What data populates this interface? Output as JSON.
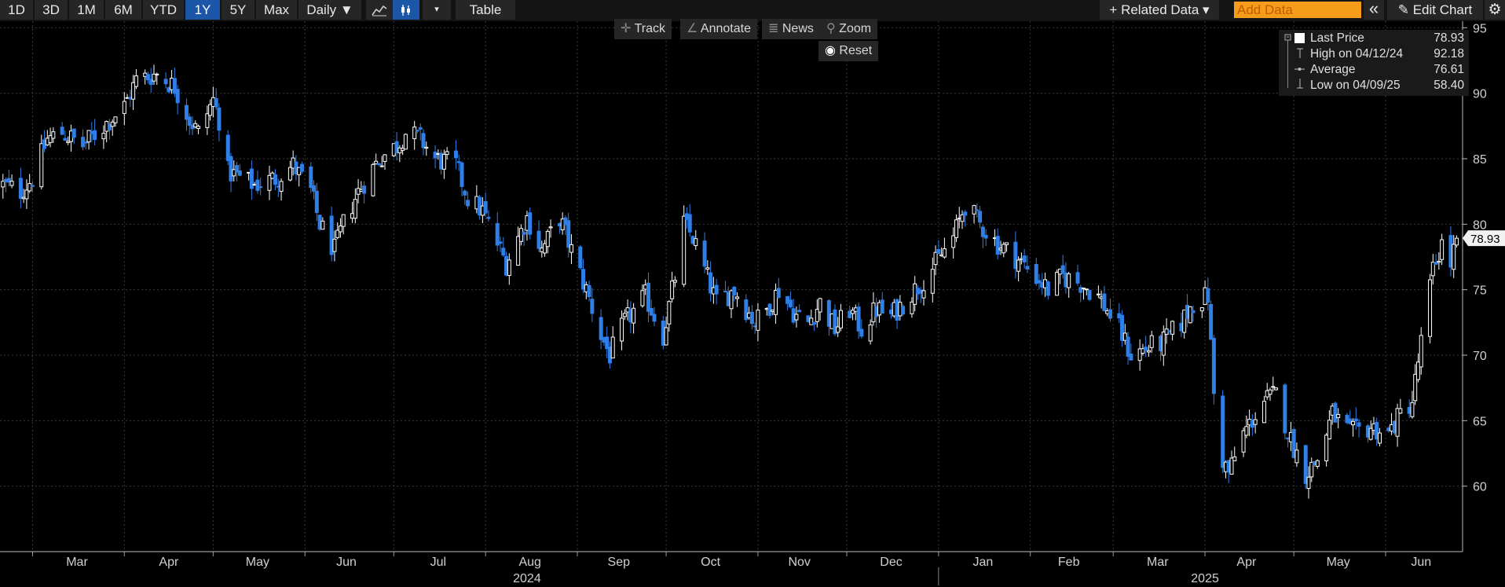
{
  "toolbar": {
    "ranges": [
      "1D",
      "3D",
      "1M",
      "6M",
      "YTD",
      "1Y",
      "5Y",
      "Max"
    ],
    "selected_range": "1Y",
    "interval": "Daily ▼",
    "chart_icons": [
      "line-chart-icon",
      "candlestick-icon",
      "dropdown-arrow-icon"
    ],
    "table_label": "Table",
    "related_data": "+ Related Data ▾",
    "add_data_placeholder": "Add Data",
    "collapse_glyph": "«",
    "edit_chart": "Edit Chart",
    "settings_icon": "gear-icon"
  },
  "chart_tools": {
    "track": "Track",
    "annotate": "Annotate",
    "news": "News",
    "zoom": "Zoom",
    "reset": "Reset"
  },
  "legend": {
    "last_price_label": "Last Price",
    "last_price_value": "78.93",
    "high_label": "High on 04/12/24",
    "high_value": "92.18",
    "average_label": "Average",
    "average_value": "76.61",
    "low_label": "Low on 04/09/25",
    "low_value": "58.40"
  },
  "colors": {
    "up": "#ffffff",
    "down": "#2f7fe8",
    "accent": "#1c56a8",
    "add_data_bg": "#f59c1a"
  },
  "chart_data": {
    "type": "candlestick",
    "ylim": [
      55,
      95.5
    ],
    "y_ticks": [
      60,
      65,
      70,
      75,
      80,
      85,
      90,
      95
    ],
    "x_ticks": [
      "Mar",
      "Apr",
      "May",
      "Jun",
      "Jul",
      "Aug",
      "Sep",
      "Oct",
      "Nov",
      "Dec",
      "Jan",
      "Feb",
      "Mar",
      "Apr",
      "May",
      "Jun"
    ],
    "years": [
      "2024",
      "2025"
    ],
    "last_price_tag": "78.93",
    "grid": true,
    "close_path": [
      [
        "2024-02-20",
        83.0
      ],
      [
        "2024-02-26",
        82.5
      ],
      [
        "2024-03-01",
        83.5
      ],
      [
        "2024-03-06",
        86.5
      ],
      [
        "2024-03-11",
        87.0
      ],
      [
        "2024-03-18",
        86.0
      ],
      [
        "2024-03-25",
        87.5
      ],
      [
        "2024-04-01",
        89.0
      ],
      [
        "2024-04-05",
        91.0
      ],
      [
        "2024-04-12",
        91.5
      ],
      [
        "2024-04-18",
        90.5
      ],
      [
        "2024-04-23",
        88.0
      ],
      [
        "2024-04-26",
        87.0
      ],
      [
        "2024-05-01",
        89.5
      ],
      [
        "2024-05-03",
        88.0
      ],
      [
        "2024-05-06",
        84.0
      ],
      [
        "2024-05-15",
        83.0
      ],
      [
        "2024-05-22",
        83.5
      ],
      [
        "2024-05-28",
        84.5
      ],
      [
        "2024-06-03",
        82.5
      ],
      [
        "2024-06-06",
        80.0
      ],
      [
        "2024-06-11",
        78.0
      ],
      [
        "2024-06-14",
        80.0
      ],
      [
        "2024-06-19",
        82.5
      ],
      [
        "2024-06-26",
        85.0
      ],
      [
        "2024-07-02",
        86.0
      ],
      [
        "2024-07-05",
        87.0
      ],
      [
        "2024-07-10",
        86.5
      ],
      [
        "2024-07-15",
        85.0
      ],
      [
        "2024-07-22",
        84.5
      ],
      [
        "2024-07-26",
        82.0
      ],
      [
        "2024-07-31",
        81.0
      ],
      [
        "2024-08-05",
        78.5
      ],
      [
        "2024-08-08",
        77.0
      ],
      [
        "2024-08-12",
        79.0
      ],
      [
        "2024-08-15",
        80.5
      ],
      [
        "2024-08-20",
        78.0
      ],
      [
        "2024-08-26",
        80.5
      ],
      [
        "2024-08-30",
        78.0
      ],
      [
        "2024-09-04",
        75.0
      ],
      [
        "2024-09-09",
        71.5
      ],
      [
        "2024-09-12",
        70.0
      ],
      [
        "2024-09-17",
        72.5
      ],
      [
        "2024-09-24",
        74.5
      ],
      [
        "2024-09-30",
        71.5
      ],
      [
        "2024-10-04",
        76.0
      ],
      [
        "2024-10-07",
        80.0
      ],
      [
        "2024-10-10",
        79.0
      ],
      [
        "2024-10-14",
        76.5
      ],
      [
        "2024-10-18",
        74.0
      ],
      [
        "2024-10-24",
        75.0
      ],
      [
        "2024-10-31",
        72.5
      ],
      [
        "2024-11-04",
        73.5
      ],
      [
        "2024-11-08",
        75.0
      ],
      [
        "2024-11-14",
        73.0
      ],
      [
        "2024-11-18",
        72.5
      ],
      [
        "2024-11-22",
        74.0
      ],
      [
        "2024-11-27",
        72.0
      ],
      [
        "2024-12-02",
        73.5
      ],
      [
        "2024-12-06",
        72.0
      ],
      [
        "2024-12-11",
        73.5
      ],
      [
        "2024-12-16",
        73.0
      ],
      [
        "2024-12-20",
        74.0
      ],
      [
        "2024-12-26",
        75.5
      ],
      [
        "2024-12-31",
        77.0
      ],
      [
        "2025-01-06",
        79.0
      ],
      [
        "2025-01-10",
        81.5
      ],
      [
        "2025-01-15",
        80.0
      ],
      [
        "2025-01-21",
        78.5
      ],
      [
        "2025-01-27",
        77.5
      ],
      [
        "2025-02-03",
        76.0
      ],
      [
        "2025-02-07",
        75.0
      ],
      [
        "2025-02-12",
        76.0
      ],
      [
        "2025-02-18",
        75.5
      ],
      [
        "2025-02-24",
        74.5
      ],
      [
        "2025-03-03",
        72.0
      ],
      [
        "2025-03-07",
        70.0
      ],
      [
        "2025-03-12",
        70.5
      ],
      [
        "2025-03-18",
        71.0
      ],
      [
        "2025-03-24",
        72.5
      ],
      [
        "2025-03-28",
        74.0
      ],
      [
        "2025-04-02",
        74.5
      ],
      [
        "2025-04-04",
        67.0
      ],
      [
        "2025-04-07",
        62.0
      ],
      [
        "2025-04-09",
        61.0
      ],
      [
        "2025-04-14",
        64.0
      ],
      [
        "2025-04-21",
        66.5
      ],
      [
        "2025-04-25",
        67.0
      ],
      [
        "2025-04-30",
        63.5
      ],
      [
        "2025-05-05",
        61.0
      ],
      [
        "2025-05-09",
        62.0
      ],
      [
        "2025-05-14",
        65.5
      ],
      [
        "2025-05-20",
        64.0
      ],
      [
        "2025-05-27",
        64.5
      ],
      [
        "2025-06-02",
        64.0
      ],
      [
        "2025-06-06",
        65.5
      ],
      [
        "2025-06-10",
        66.5
      ],
      [
        "2025-06-13",
        71.0
      ],
      [
        "2025-06-17",
        76.5
      ],
      [
        "2025-06-20",
        78.5
      ],
      [
        "2025-06-23",
        77.0
      ],
      [
        "2025-06-25",
        78.93
      ]
    ]
  }
}
